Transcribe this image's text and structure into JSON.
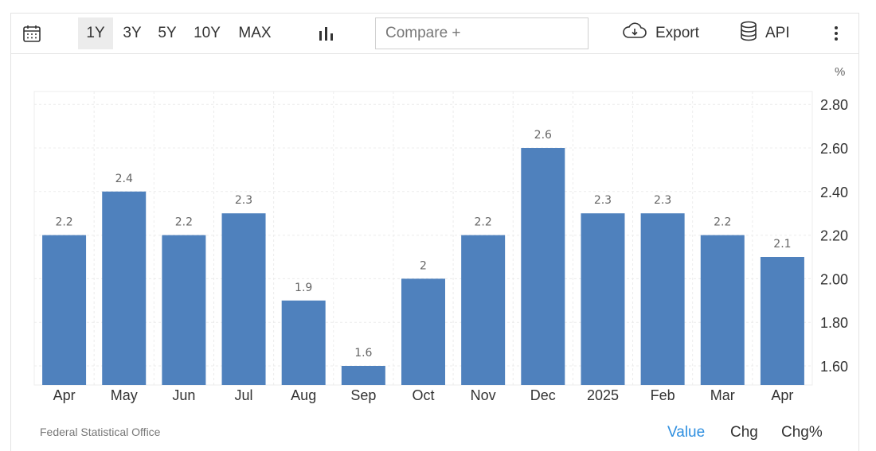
{
  "toolbar": {
    "ranges": [
      "1Y",
      "3Y",
      "5Y",
      "10Y",
      "MAX"
    ],
    "active_range": "1Y",
    "compare_placeholder": "Compare +",
    "export_label": "Export",
    "api_label": "API"
  },
  "footer": {
    "source": "Federal Statistical Office",
    "modes": [
      "Value",
      "Chg",
      "Chg%"
    ],
    "active_mode": "Value"
  },
  "chart_data": {
    "type": "bar",
    "unit": "%",
    "categories": [
      "Apr",
      "May",
      "Jun",
      "Jul",
      "Aug",
      "Sep",
      "Oct",
      "Nov",
      "Dec",
      "2025",
      "Feb",
      "Mar",
      "Apr"
    ],
    "values": [
      2.2,
      2.4,
      2.2,
      2.3,
      1.9,
      1.6,
      2,
      2.2,
      2.6,
      2.3,
      2.3,
      2.2,
      2.1
    ],
    "data_labels": [
      "2.2",
      "2.4",
      "2.2",
      "2.3",
      "1.9",
      "1.6",
      "2",
      "2.2",
      "2.6",
      "2.3",
      "2.3",
      "2.2",
      "2.1"
    ],
    "y_ticks": [
      "1.60",
      "1.80",
      "2.00",
      "2.20",
      "2.40",
      "2.60",
      "2.80"
    ],
    "ylim": [
      1.5,
      2.85
    ],
    "grid": true,
    "bar_color": "#4f81bd",
    "title": "",
    "xlabel": "",
    "ylabel": ""
  }
}
